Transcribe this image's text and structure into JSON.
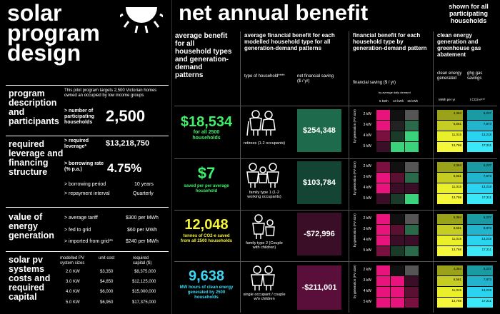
{
  "left": {
    "title": [
      "solar",
      "program",
      "design"
    ],
    "participants": {
      "heading": "program description and participants",
      "desc": "This pilot program targets 2,500 Victorian homes owned an occupied by low income groups",
      "label": "> number of participating households",
      "value": "2,500"
    },
    "leverage": {
      "heading": "required leverage and financing structure",
      "req_label": "> required leverage*",
      "req_value": "$13,218,750",
      "rate_label": "> borrowing rate (% p.a.)",
      "rate_value": "4.75%",
      "period_label": "> borrowing period",
      "period_value": "10 years",
      "repay_label": "> repayment interval",
      "repay_value": "Quarterly"
    },
    "energy": {
      "heading": "value of energy generation",
      "rows": [
        {
          "label": "> average tariff",
          "value": "$300 per MWh"
        },
        {
          "label": "> fed to grid",
          "value": "$60 per MWh"
        },
        {
          "label": "> imported from grid**",
          "value": "$240 per MWh"
        }
      ]
    },
    "costs": {
      "heading": "solar pv systems costs and required capital",
      "headers": [
        "modelled PV system sizes",
        "unit cost",
        "required capital ($)"
      ],
      "rows": [
        [
          "2.0 KW",
          "$3,350",
          "$8,375,000"
        ],
        [
          "3.0 KW",
          "$4,850",
          "$12,125,000"
        ],
        [
          "4.0 KW",
          "$6,000",
          "$15,000,000"
        ],
        [
          "5.0 KW",
          "$6,950",
          "$17,375,000"
        ]
      ]
    }
  },
  "net": {
    "title": "net annual benefit",
    "shown_note": "shown for all participating households",
    "col1_head": "average benefit for all household types and generation-demand patterns",
    "col2_head": "average financial benefit for each modelled household type for all generation-demand patterns",
    "col2_sub1": "type of household****",
    "col2_sub2": "net financial saving ($ / yr)",
    "col3_head": "financial benefit for each household type by generation-demand pattern",
    "col3_sub": "financial saving ($ / yr)",
    "col3_daily": "by average daily demand",
    "demand_cols": [
      "5 kWh",
      "10 kWh",
      "15 kWh"
    ],
    "gen_label": "by generation (PV size)",
    "col4_head": "clean energy generation and greenhouse gas abatement",
    "col4_sub1": "clean energy generated",
    "col4_sub2": "ghg gas savings",
    "col4_unit1": "MWh per yr",
    "col4_unit2": "t CO2-e***",
    "pv_sizes": [
      "2 kW",
      "3 kW",
      "4 kW",
      "5 kW"
    ],
    "sections": [
      {
        "big": "$18,534",
        "caption": "for all 2500 households",
        "color": "#3ef06a",
        "household": "retirees (1-2 occupants)",
        "saving": "$254,348",
        "saving_bg": "#1d6a4c",
        "mwh": [
          "4,364",
          "6,561",
          "11,015",
          "13,768"
        ],
        "co2": [
          "5,237",
          "7,873",
          "13,218",
          "17,211"
        ]
      },
      {
        "big": "$7",
        "caption": "saved per per average household",
        "color": "#3ef06a",
        "household": "family type 1 (1-2 working occupants)",
        "saving": "$103,784",
        "saving_bg": "#144434",
        "mwh": [
          "4,364",
          "6,561",
          "11,015",
          "13,768"
        ],
        "co2": [
          "5,237",
          "7,873",
          "13,218",
          "17,211"
        ]
      },
      {
        "big": "12,048",
        "caption": "tonnes of CO2-e saved from all 2500 households",
        "color": "#f3f33a",
        "household": "family type 2 (Couple with children)",
        "saving": "-$72,996",
        "saving_bg": "#3a0e26",
        "mwh": [
          "5,364",
          "8,561",
          "11,015",
          "13,768"
        ],
        "co2": [
          "6,237",
          "9,873",
          "13,218",
          "17,211"
        ]
      },
      {
        "big": "9,638",
        "caption": "MW hours of clean energy generated by 2500 households",
        "color": "#3ad8f3",
        "household": "single occupant / couple w/o children",
        "saving": "-$211,001",
        "saving_bg": "#5a0f3a",
        "mwh": [
          "4,364",
          "6,561",
          "11,015",
          "13,768"
        ],
        "co2": [
          "5,237",
          "7,873",
          "13,218",
          "17,211"
        ]
      }
    ]
  }
}
